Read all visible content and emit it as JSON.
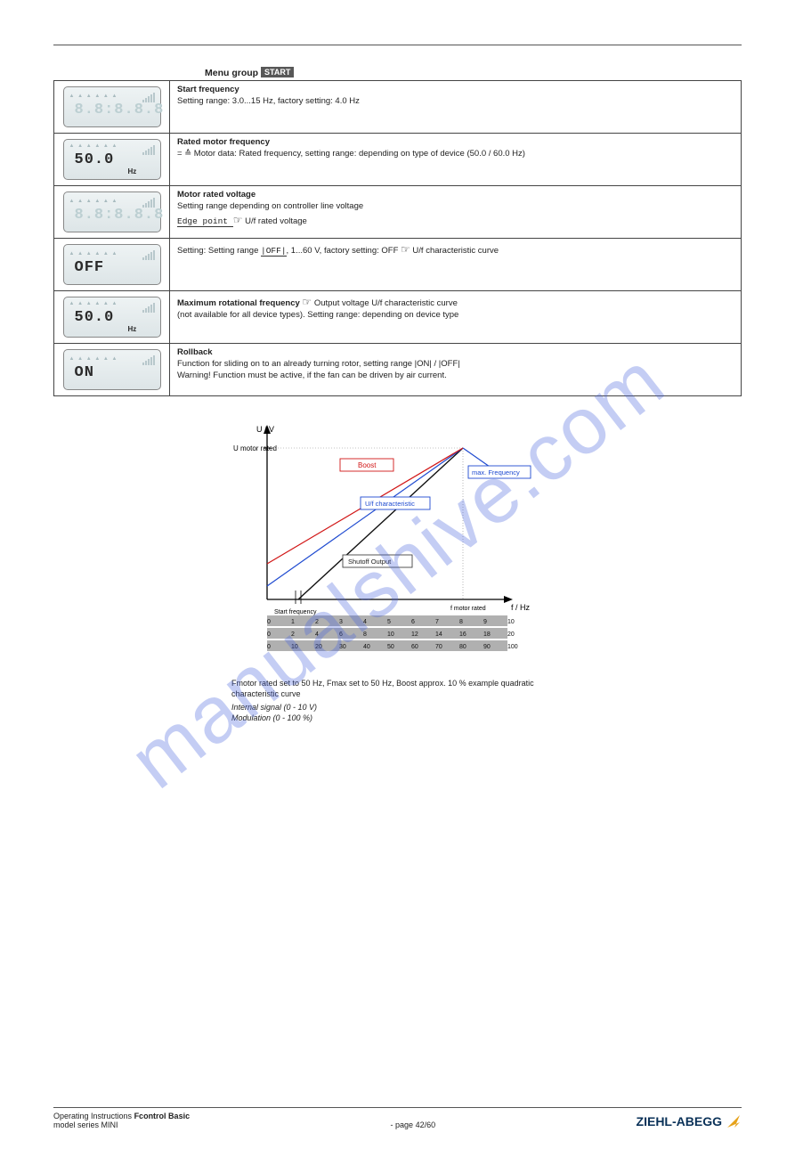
{
  "header": {
    "rule": true
  },
  "table": {
    "title_pre": "Menu group",
    "title_box": "START",
    "rows": [
      {
        "lcd": {
          "value": "8.8:8.8.8",
          "unit": "",
          "dim": true
        },
        "heading": "Start frequency",
        "body": "Setting range: 3.0...15 Hz, factory setting: 4.0 Hz",
        "extra": null
      },
      {
        "lcd": {
          "value": "50.0",
          "unit": "Hz",
          "dim": false
        },
        "heading": "Rated motor frequency",
        "body": "= ",
        "sym": "≙",
        "body2": " Motor data: Rated frequency, setting range: depending on type of device (50.0 / 60.0 Hz)",
        "extra": null
      },
      {
        "lcd": {
          "value": "8.8:8.8.8",
          "unit": "",
          "dim": true
        },
        "heading": "Motor rated voltage",
        "body": "Setting range depending on controller line voltage",
        "path_prefix": "Edge point ",
        "hand": "☞",
        "path_after": " U/f rated voltage",
        "extra": null
      },
      {
        "lcd": {
          "value": "OFF",
          "unit": "",
          "dim": false
        },
        "heading": "Setting: Setting range ",
        "path": "|OFF|",
        "body": ", 1...60 V, factory setting: OFF ",
        "hand": "☞",
        "after": " U/f characteristic curve"
      },
      {
        "lcd": {
          "value": "50.0",
          "unit": "Hz",
          "dim": false
        },
        "heading": "Maximum rotational frequency ",
        "hand": "☞",
        "after": " Output voltage U/f characteristic curve",
        "note": "(not available for all device types). Setting range: depending on device type"
      },
      {
        "lcd": {
          "value": "ON",
          "unit": "",
          "dim": false
        },
        "heading": "Rollback",
        "body": "Function for sliding on to an already turning rotor, setting range |ON| / |OFF|",
        "warn": "Warning! Function must be active, if the fan can be driven by air current."
      }
    ]
  },
  "diagram": {
    "y_title": "U / V",
    "y_top_label": "U motor rated",
    "x_title": "f / Hz",
    "x_right_label": "f motor rated",
    "x_ticks_1": [
      "0",
      "1",
      "2",
      "3",
      "4",
      "5",
      "6",
      "7",
      "8",
      "9",
      "10"
    ],
    "x_ticks_2": [
      "0",
      "2",
      "4",
      "6",
      "8",
      "10",
      "12",
      "14",
      "16",
      "18",
      "20"
    ],
    "x_ticks_3": [
      "0",
      "10",
      "20",
      "30",
      "40",
      "50",
      "60",
      "70",
      "80",
      "90",
      "100"
    ],
    "axis_labels": {
      "left_small_arrow": "Start frequency"
    },
    "legend": {
      "red": "Boost",
      "blue_inside": "U/f characteristic",
      "blue_outside": "max. Frequency",
      "black": "Shutoff Output"
    },
    "colors": {
      "red": "#d11616",
      "blue": "#1e4ad0",
      "black": "#111"
    },
    "caption": "Fmotor rated set to 50 Hz, Fmax set to 50 Hz, Boost approx. 10 % example quadratic characteristic curve",
    "int_line": "Internal signal (0 - 10 V)",
    "mod_line": "Modulation (0 - 100 %)"
  },
  "footer": {
    "left1": "Operating Instructions",
    "left2": "model series MINI",
    "model": "Fcontrol Basic",
    "page_prefix": "- page",
    "page": "42/60",
    "brand": "ZIEHL-ABEGG"
  },
  "watermark": "manualshive.com"
}
